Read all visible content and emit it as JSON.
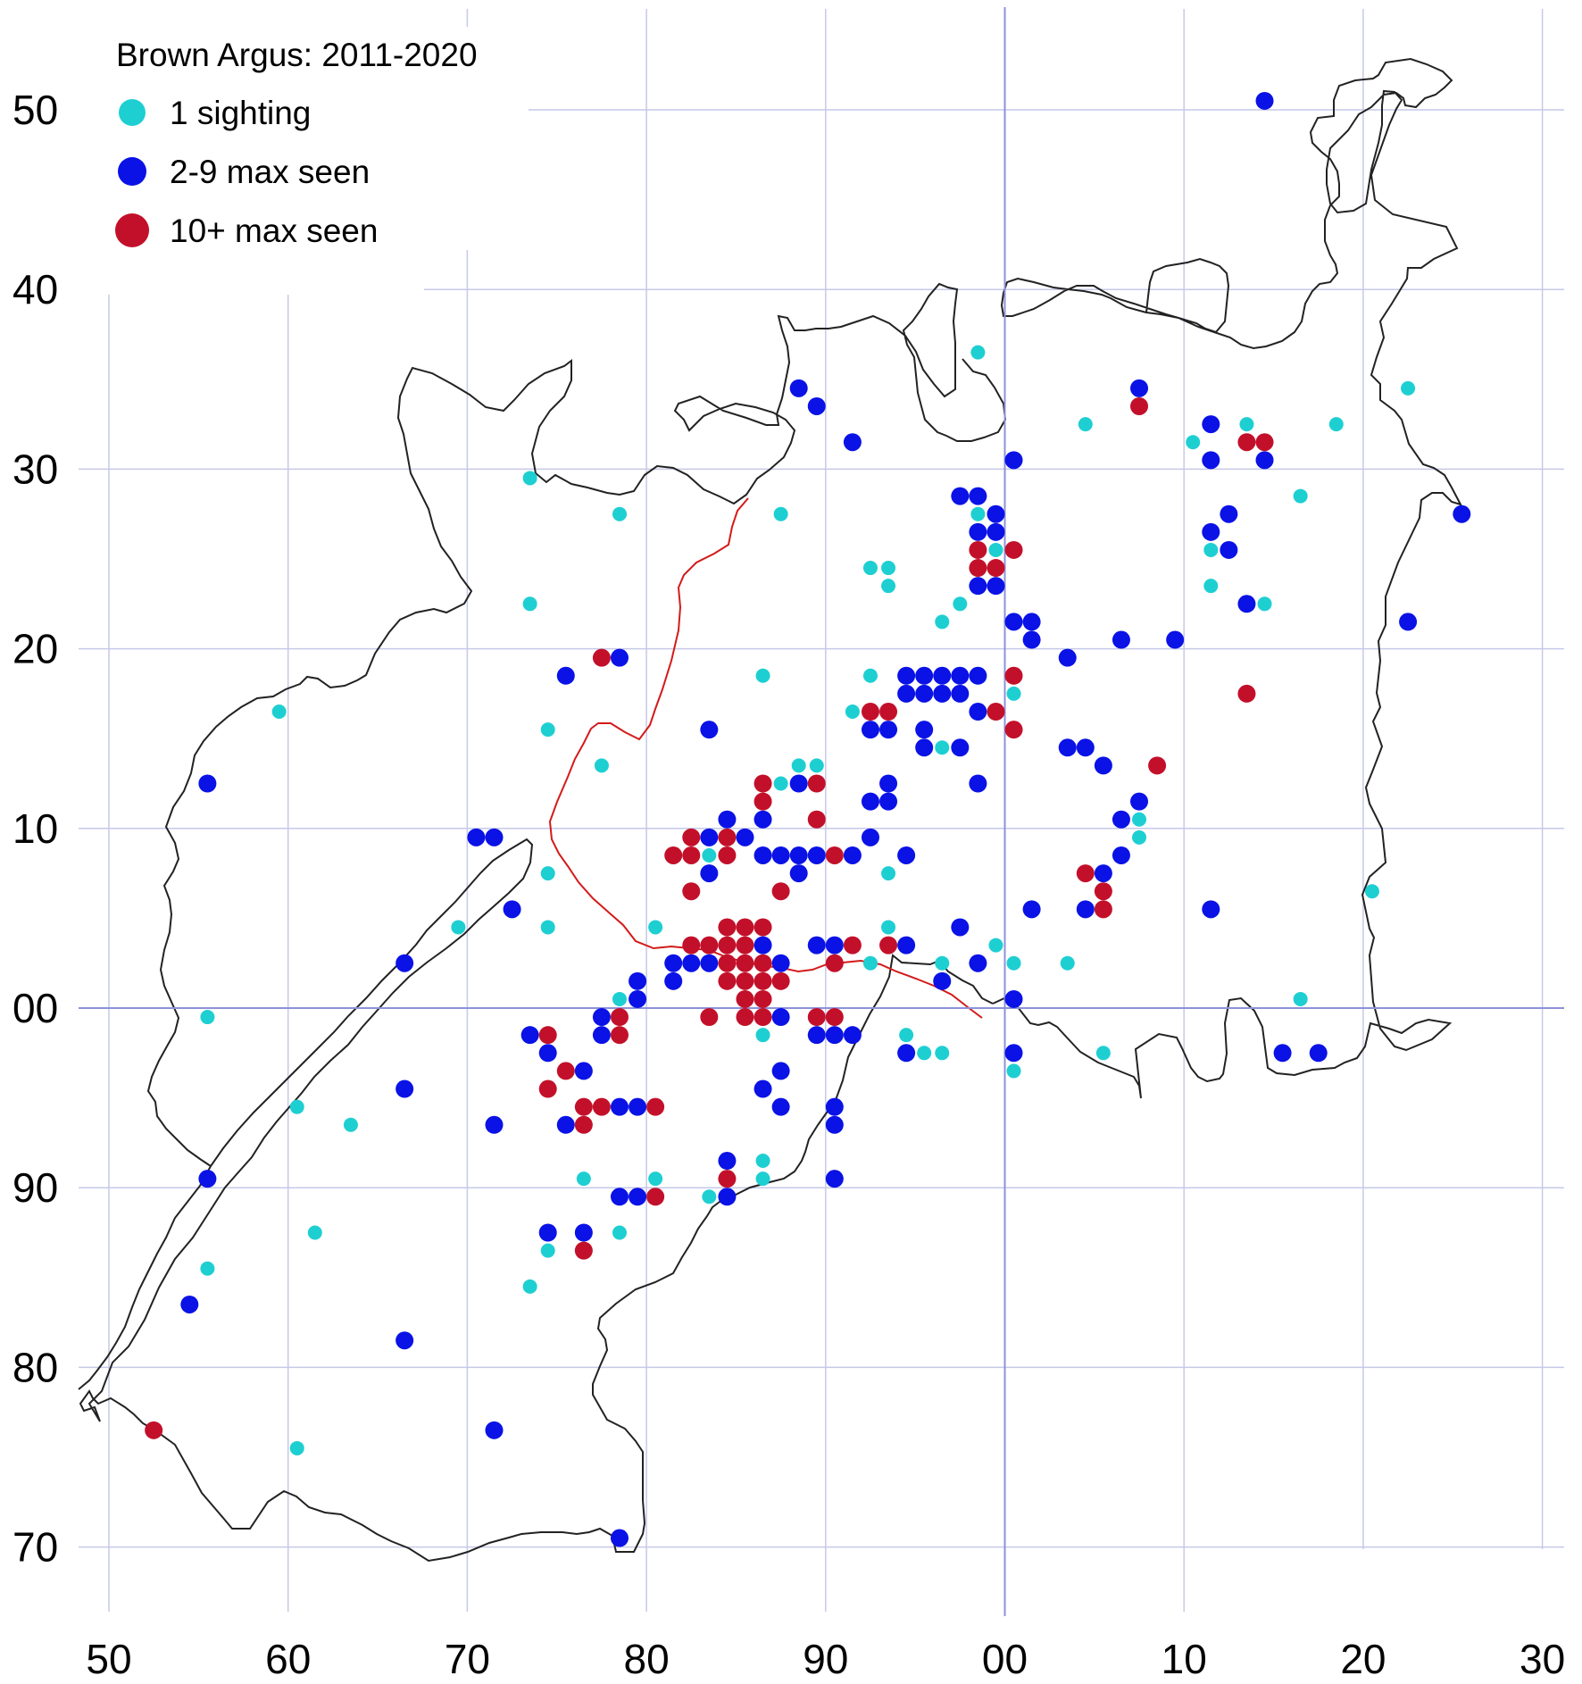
{
  "title": "Brown Argus:  2011-2020",
  "x_ticks": [
    "50",
    "60",
    "70",
    "80",
    "90",
    "00",
    "10",
    "20",
    "30"
  ],
  "y_ticks": [
    "50",
    "40",
    "30",
    "20",
    "10",
    "00",
    "90",
    "80",
    "70"
  ],
  "legend": [
    {
      "key": "c",
      "label": "1 sighting",
      "color": "#1ecfd2"
    },
    {
      "key": "b",
      "label": "2-9 max seen",
      "color": "#0a12e6"
    },
    {
      "key": "r",
      "label": "10+ max seen",
      "color": "#c3102a"
    }
  ],
  "colors": {
    "grid": "#c6c9e8",
    "axis_line": "#8d92d8",
    "boundary": "#222222",
    "border_line": "#d41a1a"
  },
  "chart_data": {
    "type": "scatter",
    "title": "Brown Argus:  2011-2020",
    "x_tick_labels": [
      "50",
      "60",
      "70",
      "80",
      "90",
      "00",
      "10",
      "20",
      "30"
    ],
    "y_tick_labels": [
      "50",
      "40",
      "30",
      "20",
      "10",
      "00",
      "90",
      "80",
      "70"
    ],
    "grid": true,
    "legend_position": "top-left",
    "series": [
      {
        "name": "1 sighting",
        "color": "#1ecfd2",
        "points": [
          [
            98.5,
            36.5
          ],
          [
            104.5,
            32.5
          ],
          [
            113.5,
            32.5
          ],
          [
            118.5,
            32.5
          ],
          [
            122.5,
            34.5
          ],
          [
            110.5,
            31.5
          ],
          [
            116.5,
            28.5
          ],
          [
            73.5,
            29.5
          ],
          [
            78.5,
            27.5
          ],
          [
            87.5,
            27.5
          ],
          [
            73.5,
            22.5
          ],
          [
            92.5,
            24.5
          ],
          [
            93.5,
            24.5
          ],
          [
            93.5,
            23.5
          ],
          [
            98.5,
            27.5
          ],
          [
            99.5,
            25.5
          ],
          [
            97.5,
            22.5
          ],
          [
            96.5,
            21.5
          ],
          [
            111.5,
            25.5
          ],
          [
            111.5,
            23.5
          ],
          [
            114.5,
            22.5
          ],
          [
            59.5,
            16.5
          ],
          [
            74.5,
            15.5
          ],
          [
            77.5,
            13.5
          ],
          [
            86.5,
            18.5
          ],
          [
            92.5,
            18.5
          ],
          [
            91.5,
            16.5
          ],
          [
            88.5,
            13.5
          ],
          [
            89.5,
            13.5
          ],
          [
            87.5,
            12.5
          ],
          [
            100.5,
            17.5
          ],
          [
            96.5,
            14.5
          ],
          [
            107.5,
            10.5
          ],
          [
            107.5,
            9.5
          ],
          [
            120.5,
            6.5
          ],
          [
            74.5,
            7.5
          ],
          [
            93.5,
            7.5
          ],
          [
            69.5,
            4.5
          ],
          [
            74.5,
            4.5
          ],
          [
            80.5,
            4.5
          ],
          [
            83.5,
            8.5
          ],
          [
            93.5,
            4.5
          ],
          [
            99.5,
            3.5
          ],
          [
            92.5,
            2.5
          ],
          [
            96.5,
            2.5
          ],
          [
            100.5,
            2.5
          ],
          [
            103.5,
            2.5
          ],
          [
            78.5,
            0.5
          ],
          [
            116.5,
            0.5
          ],
          [
            55.5,
            -0.5
          ],
          [
            86.5,
            -1.5
          ],
          [
            94.5,
            -1.5
          ],
          [
            95.5,
            -2.5
          ],
          [
            96.5,
            -2.5
          ],
          [
            100.5,
            -3.5
          ],
          [
            105.5,
            -2.5
          ],
          [
            60.5,
            -5.5
          ],
          [
            63.5,
            -6.5
          ],
          [
            76.5,
            -9.5
          ],
          [
            80.5,
            -9.5
          ],
          [
            86.5,
            -8.5
          ],
          [
            86.5,
            -9.5
          ],
          [
            61.5,
            -12.5
          ],
          [
            74.5,
            -13.5
          ],
          [
            78.5,
            -12.5
          ],
          [
            83.5,
            -10.5
          ],
          [
            55.5,
            -14.5
          ],
          [
            73.5,
            -15.5
          ],
          [
            60.5,
            -24.5
          ]
        ]
      },
      {
        "name": "2-9 max seen",
        "color": "#0a12e6",
        "points": [
          [
            114.5,
            50.5
          ],
          [
            88.5,
            34.5
          ],
          [
            89.5,
            33.5
          ],
          [
            107.5,
            34.5
          ],
          [
            91.5,
            31.5
          ],
          [
            100.5,
            30.5
          ],
          [
            111.5,
            32.5
          ],
          [
            111.5,
            30.5
          ],
          [
            114.5,
            30.5
          ],
          [
            97.5,
            28.5
          ],
          [
            98.5,
            28.5
          ],
          [
            98.5,
            26.5
          ],
          [
            99.5,
            27.5
          ],
          [
            99.5,
            26.5
          ],
          [
            98.5,
            23.5
          ],
          [
            99.5,
            23.5
          ],
          [
            111.5,
            26.5
          ],
          [
            112.5,
            27.5
          ],
          [
            112.5,
            25.5
          ],
          [
            113.5,
            22.5
          ],
          [
            125.5,
            27.5
          ],
          [
            100.5,
            21.5
          ],
          [
            101.5,
            21.5
          ],
          [
            101.5,
            20.5
          ],
          [
            103.5,
            19.5
          ],
          [
            106.5,
            20.5
          ],
          [
            109.5,
            20.5
          ],
          [
            122.5,
            21.5
          ],
          [
            75.5,
            18.5
          ],
          [
            78.5,
            19.5
          ],
          [
            83.5,
            15.5
          ],
          [
            94.5,
            18.5
          ],
          [
            95.5,
            18.5
          ],
          [
            96.5,
            18.5
          ],
          [
            97.5,
            18.5
          ],
          [
            98.5,
            18.5
          ],
          [
            94.5,
            17.5
          ],
          [
            95.5,
            17.5
          ],
          [
            96.5,
            17.5
          ],
          [
            97.5,
            17.5
          ],
          [
            98.5,
            16.5
          ],
          [
            92.5,
            15.5
          ],
          [
            93.5,
            15.5
          ],
          [
            95.5,
            15.5
          ],
          [
            95.5,
            14.5
          ],
          [
            97.5,
            14.5
          ],
          [
            103.5,
            14.5
          ],
          [
            104.5,
            14.5
          ],
          [
            105.5,
            13.5
          ],
          [
            88.5,
            12.5
          ],
          [
            92.5,
            11.5
          ],
          [
            93.5,
            12.5
          ],
          [
            93.5,
            11.5
          ],
          [
            98.5,
            12.5
          ],
          [
            107.5,
            11.5
          ],
          [
            106.5,
            10.5
          ],
          [
            84.5,
            10.5
          ],
          [
            85.5,
            9.5
          ],
          [
            86.5,
            10.5
          ],
          [
            83.5,
            9.5
          ],
          [
            83.5,
            7.5
          ],
          [
            86.5,
            8.5
          ],
          [
            87.5,
            8.5
          ],
          [
            88.5,
            8.5
          ],
          [
            88.5,
            7.5
          ],
          [
            89.5,
            8.5
          ],
          [
            91.5,
            8.5
          ],
          [
            92.5,
            9.5
          ],
          [
            94.5,
            8.5
          ],
          [
            106.5,
            8.5
          ],
          [
            105.5,
            7.5
          ],
          [
            104.5,
            5.5
          ],
          [
            70.5,
            9.5
          ],
          [
            71.5,
            9.5
          ],
          [
            72.5,
            5.5
          ],
          [
            101.5,
            5.5
          ],
          [
            111.5,
            5.5
          ],
          [
            97.5,
            4.5
          ],
          [
            89.5,
            3.5
          ],
          [
            90.5,
            3.5
          ],
          [
            94.5,
            3.5
          ],
          [
            96.5,
            1.5
          ],
          [
            98.5,
            2.5
          ],
          [
            100.5,
            0.5
          ],
          [
            66.5,
            2.5
          ],
          [
            79.5,
            1.5
          ],
          [
            79.5,
            0.5
          ],
          [
            81.5,
            2.5
          ],
          [
            81.5,
            1.5
          ],
          [
            82.5,
            2.5
          ],
          [
            83.5,
            2.5
          ],
          [
            86.5,
            3.5
          ],
          [
            87.5,
            2.5
          ],
          [
            77.5,
            -0.5
          ],
          [
            77.5,
            -1.5
          ],
          [
            73.5,
            -1.5
          ],
          [
            74.5,
            -2.5
          ],
          [
            87.5,
            -0.5
          ],
          [
            89.5,
            -1.5
          ],
          [
            90.5,
            -1.5
          ],
          [
            91.5,
            -1.5
          ],
          [
            94.5,
            -2.5
          ],
          [
            100.5,
            -2.5
          ],
          [
            115.5,
            -2.5
          ],
          [
            117.5,
            -2.5
          ],
          [
            76.5,
            -3.5
          ],
          [
            87.5,
            -3.5
          ],
          [
            86.5,
            -4.5
          ],
          [
            87.5,
            -5.5
          ],
          [
            78.5,
            -5.5
          ],
          [
            79.5,
            -5.5
          ],
          [
            75.5,
            -6.5
          ],
          [
            90.5,
            -5.5
          ],
          [
            90.5,
            -6.5
          ],
          [
            66.5,
            -4.5
          ],
          [
            71.5,
            -6.5
          ],
          [
            55.5,
            -9.5
          ],
          [
            84.5,
            -8.5
          ],
          [
            84.5,
            -10.5
          ],
          [
            78.5,
            -10.5
          ],
          [
            79.5,
            -10.5
          ],
          [
            90.5,
            -9.5
          ],
          [
            74.5,
            -12.5
          ],
          [
            76.5,
            -12.5
          ],
          [
            54.5,
            -16.5
          ],
          [
            66.5,
            -18.5
          ],
          [
            71.5,
            -23.5
          ],
          [
            78.5,
            -29.5
          ],
          [
            55.5,
            12.5
          ]
        ]
      },
      {
        "name": "10+ max seen",
        "color": "#c3102a",
        "points": [
          [
            107.5,
            33.5
          ],
          [
            113.5,
            31.5
          ],
          [
            114.5,
            31.5
          ],
          [
            98.5,
            25.5
          ],
          [
            98.5,
            24.5
          ],
          [
            99.5,
            24.5
          ],
          [
            100.5,
            25.5
          ],
          [
            77.5,
            19.5
          ],
          [
            113.5,
            17.5
          ],
          [
            100.5,
            18.5
          ],
          [
            99.5,
            16.5
          ],
          [
            100.5,
            15.5
          ],
          [
            92.5,
            16.5
          ],
          [
            93.5,
            16.5
          ],
          [
            108.5,
            13.5
          ],
          [
            86.5,
            12.5
          ],
          [
            86.5,
            11.5
          ],
          [
            89.5,
            12.5
          ],
          [
            89.5,
            10.5
          ],
          [
            82.5,
            9.5
          ],
          [
            84.5,
            9.5
          ],
          [
            81.5,
            8.5
          ],
          [
            82.5,
            8.5
          ],
          [
            84.5,
            8.5
          ],
          [
            87.5,
            6.5
          ],
          [
            82.5,
            6.5
          ],
          [
            90.5,
            8.5
          ],
          [
            104.5,
            7.5
          ],
          [
            105.5,
            6.5
          ],
          [
            105.5,
            5.5
          ],
          [
            82.5,
            3.5
          ],
          [
            83.5,
            3.5
          ],
          [
            84.5,
            4.5
          ],
          [
            85.5,
            4.5
          ],
          [
            86.5,
            4.5
          ],
          [
            84.5,
            3.5
          ],
          [
            85.5,
            3.5
          ],
          [
            84.5,
            2.5
          ],
          [
            85.5,
            2.5
          ],
          [
            86.5,
            2.5
          ],
          [
            84.5,
            1.5
          ],
          [
            85.5,
            1.5
          ],
          [
            86.5,
            1.5
          ],
          [
            85.5,
            0.5
          ],
          [
            86.5,
            0.5
          ],
          [
            85.5,
            -0.5
          ],
          [
            86.5,
            -0.5
          ],
          [
            87.5,
            1.5
          ],
          [
            90.5,
            2.5
          ],
          [
            91.5,
            3.5
          ],
          [
            93.5,
            3.5
          ],
          [
            83.5,
            -0.5
          ],
          [
            78.5,
            -0.5
          ],
          [
            78.5,
            -1.5
          ],
          [
            89.5,
            -0.5
          ],
          [
            90.5,
            -0.5
          ],
          [
            74.5,
            -1.5
          ],
          [
            75.5,
            -3.5
          ],
          [
            74.5,
            -4.5
          ],
          [
            76.5,
            -5.5
          ],
          [
            77.5,
            -5.5
          ],
          [
            76.5,
            -6.5
          ],
          [
            80.5,
            -5.5
          ],
          [
            84.5,
            -9.5
          ],
          [
            80.5,
            -10.5
          ],
          [
            76.5,
            -13.5
          ],
          [
            52.5,
            -23.5
          ]
        ]
      }
    ]
  }
}
